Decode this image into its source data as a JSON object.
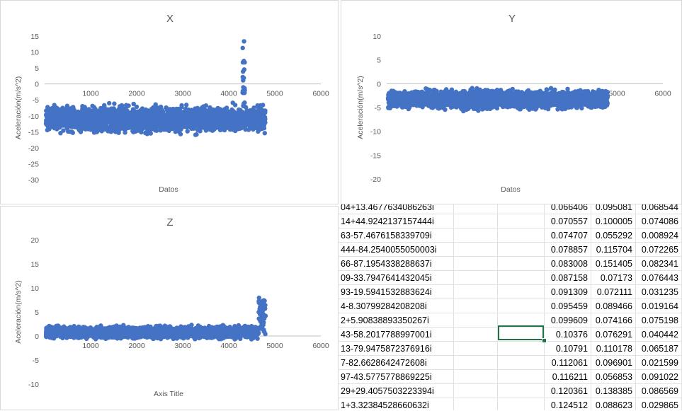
{
  "charts": [
    {
      "id": "x",
      "title": "X",
      "xlabel": "Datos",
      "ylabel": "Aceleración(m/s^2)",
      "yticks": [
        15,
        10,
        5,
        0,
        -5,
        -10,
        -15,
        -20,
        -25,
        -30
      ],
      "xticks": [
        1000,
        2000,
        3000,
        4000,
        5000,
        6000
      ],
      "ylim": [
        -30,
        15
      ],
      "xlim": [
        0,
        6000
      ],
      "color": "#4472c4"
    },
    {
      "id": "y",
      "title": "Y",
      "xlabel": "Datos",
      "ylabel": "Aceleración(m/s^2)",
      "yticks": [
        10,
        5,
        0,
        -5,
        -10,
        -15,
        -20
      ],
      "xticks": [
        1000,
        2000,
        3000,
        4000,
        5000,
        6000
      ],
      "ylim": [
        -20,
        10
      ],
      "xlim": [
        0,
        6000
      ],
      "color": "#4472c4"
    },
    {
      "id": "z",
      "title": "Z",
      "xlabel": "Axis Title",
      "ylabel": "Aceleración(m/s^2)",
      "yticks": [
        20,
        15,
        10,
        5,
        0,
        -5,
        -10
      ],
      "xticks": [
        1000,
        2000,
        3000,
        4000,
        5000,
        6000
      ],
      "ylim": [
        -10,
        20
      ],
      "xlim": [
        0,
        6000
      ],
      "color": "#4472c4"
    }
  ],
  "table": {
    "rows": [
      [
        "04+13.4677634086263i",
        "",
        "",
        "0.066406",
        "0.095081",
        "0.068544"
      ],
      [
        "14+44.9242137157444i",
        "",
        "",
        "0.070557",
        "0.100005",
        "0.074086"
      ],
      [
        "63-57.4676158339709i",
        "",
        "",
        "0.074707",
        "0.055292",
        "0.008924"
      ],
      [
        "444-84.2540055050003i",
        "",
        "",
        "0.078857",
        "0.115704",
        "0.072265"
      ],
      [
        "66-87.1954338288637i",
        "",
        "",
        "0.083008",
        "0.151405",
        "0.082341"
      ],
      [
        "09-33.7947641432045i",
        "",
        "",
        "0.087158",
        "0.07173",
        "0.076443"
      ],
      [
        "93-19.5941532883624i",
        "",
        "",
        "0.091309",
        "0.072111",
        "0.031235"
      ],
      [
        "4-8.30799284208208i",
        "",
        "",
        "0.095459",
        "0.089466",
        "0.019164"
      ],
      [
        "2+5.90838893350267i",
        "",
        "",
        "0.099609",
        "0.074166",
        "0.075198"
      ],
      [
        "43-58.2017788997001i",
        "",
        "",
        "0.10376",
        "0.076291",
        "0.040442"
      ],
      [
        "13-79.9475872376916i",
        "",
        "",
        "0.10791",
        "0.110178",
        "0.065187"
      ],
      [
        "7-82.6628642472608i",
        "",
        "",
        "0.112061",
        "0.096901",
        "0.021599"
      ],
      [
        "97-43.5775778869225i",
        "",
        "",
        "0.116211",
        "0.056853",
        "0.091022"
      ],
      [
        "29+29.4057503223394i",
        "",
        "",
        "0.120361",
        "0.138385",
        "0.086569"
      ],
      [
        "1+3.32384528660632i",
        "",
        "",
        "0.124512",
        "0.088623",
        "0.029865"
      ]
    ]
  }
}
